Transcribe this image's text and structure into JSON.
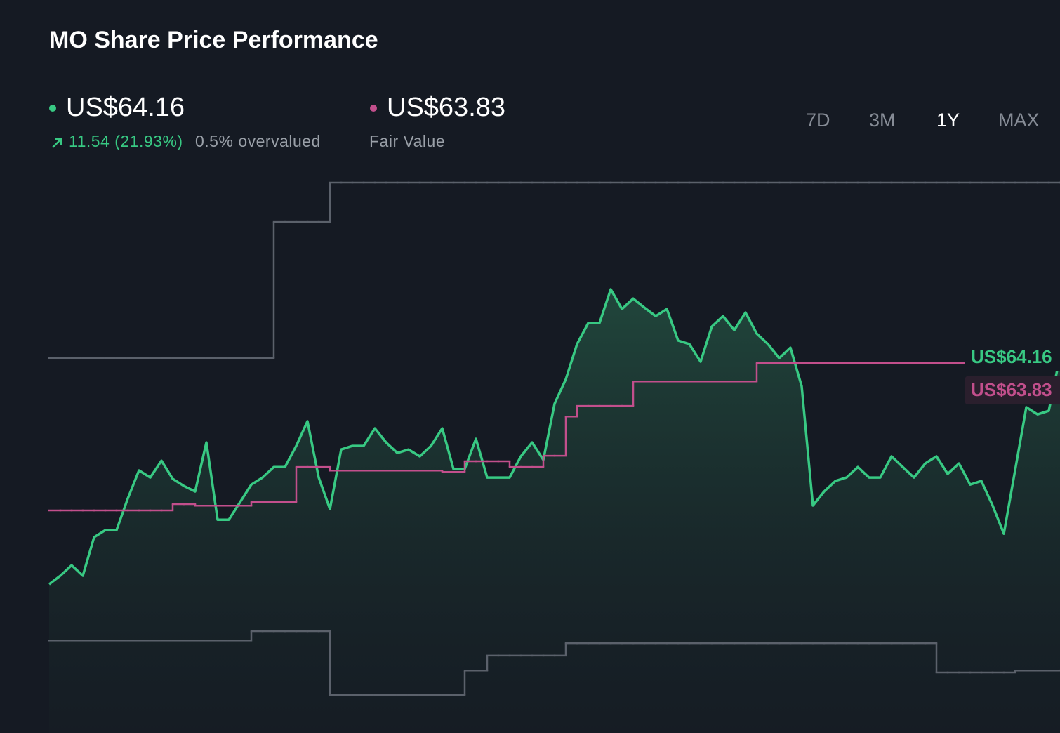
{
  "header": {
    "title": "MO Share Price Performance",
    "price": "US$64.16",
    "change": "11.54 (21.93%)",
    "valuation": "0.5% overvalued",
    "fair_value": "US$63.83",
    "fair_value_label": "Fair Value"
  },
  "timeframes": [
    "7D",
    "3M",
    "1Y",
    "MAX"
  ],
  "active_timeframe": 2,
  "chart_data": {
    "type": "line",
    "ylim": [
      45.08,
      73.69
    ],
    "series": [
      {
        "color": "#5b616b",
        "step": true,
        "values": [
          64.08,
          64.08,
          64.08,
          64.08,
          64.08,
          64.08,
          64.08,
          64.08,
          64.08,
          64.08,
          64.08,
          64.08,
          64.08,
          64.08,
          64.08,
          64.08,
          64.08,
          64.08,
          64.08,
          64.08,
          70.98,
          70.98,
          70.98,
          70.98,
          70.98,
          72.98,
          72.98,
          72.98,
          72.98,
          72.98,
          72.98,
          72.98,
          72.98,
          72.98,
          72.98,
          72.98,
          72.98,
          72.98,
          72.98,
          72.98,
          72.98,
          72.98,
          72.98,
          72.98,
          72.98,
          72.98,
          72.98,
          72.98,
          72.98,
          72.98,
          72.98,
          72.98,
          72.98,
          72.98,
          72.98,
          72.98,
          72.98,
          72.98,
          72.98,
          72.98,
          72.98,
          72.98,
          72.98,
          72.98,
          72.98,
          72.98,
          72.98,
          72.98,
          72.98,
          72.98,
          72.98,
          72.98,
          72.98,
          72.98,
          72.98,
          72.98,
          72.98,
          72.98,
          72.98,
          72.98,
          72.98,
          72.98,
          72.98,
          72.98,
          72.98,
          72.98,
          72.98,
          72.98,
          72.98,
          72.98,
          72.98
        ]
      },
      {
        "color": "#5b616b",
        "step": true,
        "values": [
          49.77,
          49.77,
          49.77,
          49.77,
          49.77,
          49.77,
          49.77,
          49.77,
          49.77,
          49.77,
          49.77,
          49.77,
          49.77,
          49.77,
          49.77,
          49.77,
          49.77,
          49.77,
          50.24,
          50.24,
          50.24,
          50.24,
          50.24,
          50.24,
          50.24,
          47.0,
          47.0,
          47.0,
          47.0,
          47.0,
          47.0,
          47.0,
          47.0,
          47.0,
          47.0,
          47.0,
          47.0,
          48.24,
          48.24,
          49.0,
          49.0,
          49.0,
          49.0,
          49.0,
          49.0,
          49.0,
          49.63,
          49.63,
          49.63,
          49.63,
          49.63,
          49.63,
          49.63,
          49.63,
          49.63,
          49.63,
          49.63,
          49.63,
          49.63,
          49.63,
          49.63,
          49.63,
          49.63,
          49.63,
          49.63,
          49.63,
          49.63,
          49.63,
          49.63,
          49.63,
          49.63,
          49.63,
          49.63,
          49.63,
          49.63,
          49.63,
          49.63,
          49.63,
          49.63,
          48.14,
          48.14,
          48.14,
          48.14,
          48.14,
          48.14,
          48.14,
          48.24,
          48.24,
          48.24,
          48.24,
          48.24
        ]
      },
      {
        "color": "#c24f8c",
        "step": true,
        "values": [
          56.36,
          56.36,
          56.36,
          56.36,
          56.36,
          56.36,
          56.36,
          56.36,
          56.36,
          56.36,
          56.36,
          56.68,
          56.68,
          56.6,
          56.6,
          56.6,
          56.6,
          56.6,
          56.78,
          56.78,
          56.78,
          56.78,
          58.56,
          58.56,
          58.56,
          58.38,
          58.38,
          58.38,
          58.38,
          58.38,
          58.38,
          58.38,
          58.38,
          58.38,
          58.38,
          58.31,
          58.31,
          58.85,
          58.85,
          58.85,
          58.85,
          58.56,
          58.56,
          58.56,
          59.13,
          59.13,
          61.12,
          61.66,
          61.66,
          61.66,
          61.66,
          61.66,
          62.9,
          62.9,
          62.9,
          62.9,
          62.9,
          62.9,
          62.9,
          62.9,
          62.9,
          62.9,
          62.9,
          63.83,
          63.83,
          63.83,
          63.83,
          63.83,
          63.83,
          63.83,
          63.83,
          63.83,
          63.83,
          63.83,
          63.83,
          63.83,
          63.83,
          63.83,
          63.83,
          63.83,
          63.83,
          63.83,
          63.83,
          63.83,
          63.83,
          63.83,
          63.83,
          63.83,
          63.83,
          63.83,
          63.83
        ]
      },
      {
        "color": "#38c983",
        "area": true,
        "values": [
          52.62,
          53.05,
          53.58,
          53.05,
          55.0,
          55.36,
          55.36,
          56.96,
          58.39,
          58.03,
          58.88,
          57.96,
          57.6,
          57.32,
          59.81,
          55.89,
          55.89,
          56.78,
          57.67,
          58.03,
          58.56,
          58.56,
          59.63,
          60.88,
          58.03,
          56.43,
          59.45,
          59.63,
          59.63,
          60.52,
          59.81,
          59.27,
          59.45,
          59.1,
          59.63,
          60.52,
          58.46,
          58.46,
          59.99,
          58.03,
          58.03,
          58.03,
          59.1,
          59.81,
          58.92,
          61.77,
          63.01,
          64.79,
          65.86,
          65.86,
          67.57,
          66.57,
          67.1,
          66.64,
          66.21,
          66.57,
          64.97,
          64.79,
          63.9,
          65.68,
          66.21,
          65.5,
          66.39,
          65.32,
          64.79,
          64.08,
          64.61,
          62.66,
          56.61,
          57.32,
          57.85,
          58.03,
          58.56,
          58.03,
          58.03,
          59.1,
          58.56,
          58.03,
          58.74,
          59.1,
          58.21,
          58.74,
          57.67,
          57.85,
          56.61,
          55.18,
          58.39,
          61.59,
          61.23,
          61.41,
          64.16
        ]
      }
    ]
  }
}
